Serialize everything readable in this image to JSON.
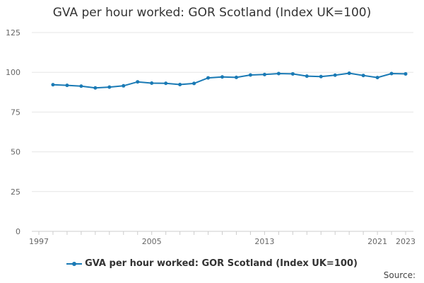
{
  "chart_data": {
    "type": "line",
    "title": "GVA per hour worked: GOR Scotland (Index UK=100)",
    "xlabel": "",
    "ylabel": "",
    "xlim": [
      1997,
      2023
    ],
    "ylim": [
      0,
      125
    ],
    "y_ticks": [
      0,
      25,
      50,
      75,
      100,
      125
    ],
    "x_ticks": [
      1997,
      2005,
      2013,
      2021,
      2023
    ],
    "grid": true,
    "legend_position": "bottom",
    "series": [
      {
        "name": "GVA per hour worked: GOR Scotland (Index UK=100)",
        "color": "#1a7ab5",
        "x": [
          1998,
          1999,
          2000,
          2001,
          2002,
          2003,
          2004,
          2005,
          2006,
          2007,
          2008,
          2009,
          2010,
          2011,
          2012,
          2013,
          2014,
          2015,
          2016,
          2017,
          2018,
          2019,
          2020,
          2021,
          2022,
          2023
        ],
        "values": [
          92.2,
          91.8,
          91.3,
          90.2,
          90.7,
          91.5,
          94.0,
          93.2,
          93.1,
          92.3,
          93.0,
          96.5,
          97.1,
          96.8,
          98.3,
          98.6,
          99.2,
          99.0,
          97.6,
          97.3,
          98.2,
          99.4,
          98.0,
          96.7,
          99.2,
          99.0
        ]
      }
    ]
  },
  "source_label": "Source:"
}
